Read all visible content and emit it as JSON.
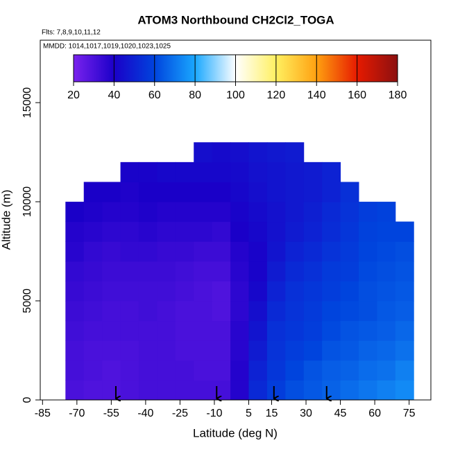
{
  "chart_data": {
    "type": "curtain",
    "title": "ATOM3 Northbound CH2Cl2_TOGA",
    "subtitle": "Flts: 7,8,9,10,11,12",
    "annotation": "MMDD: 1014,1017,1019,1020,1023,1025",
    "x_label": "Latitude (deg N)",
    "y_label": "Altitude (m)",
    "xlim": [
      -86,
      84.5
    ],
    "ylim": [
      0,
      18150
    ],
    "xticks": [
      -85,
      -70,
      -55,
      -40,
      -25,
      -10,
      5,
      15,
      30,
      45,
      60,
      75
    ],
    "yticks": [
      0,
      5000,
      10000,
      15000
    ],
    "colorbar_ticks": [
      20,
      40,
      60,
      80,
      100,
      120,
      140,
      160,
      180
    ],
    "colorscale": [
      "#7a22ee",
      "#1a00c8",
      "#0044dd",
      "#1aa8ff",
      "#ffffff",
      "#fff060",
      "#ffa010",
      "#e61a00",
      "#8b1010"
    ],
    "lat_bins": [
      -75,
      -67,
      -59,
      -51,
      -43,
      -35,
      -27,
      -19,
      -11,
      -3,
      5,
      13,
      21,
      29,
      37,
      45,
      53,
      61,
      69,
      77
    ],
    "alt_bins": [
      0,
      1000,
      2000,
      3000,
      4000,
      5000,
      6000,
      7000,
      8000,
      9000,
      10000,
      11000,
      12000,
      13000
    ],
    "grid": [
      [
        30,
        31,
        31,
        32,
        33,
        34,
        35,
        37,
        38,
        40,
        null,
        null,
        null
      ],
      [
        29,
        30,
        30,
        31,
        32,
        33,
        34,
        35,
        37,
        39,
        40,
        null,
        null
      ],
      [
        29,
        29,
        30,
        31,
        31,
        32,
        33,
        34,
        36,
        38,
        40,
        null,
        null
      ],
      [
        30,
        30,
        30,
        31,
        31,
        32,
        33,
        35,
        36,
        38,
        39,
        41,
        null
      ],
      [
        31,
        31,
        31,
        31,
        32,
        32,
        33,
        35,
        37,
        39,
        40,
        41,
        null
      ],
      [
        31,
        31,
        31,
        31,
        31,
        32,
        33,
        34,
        36,
        38,
        40,
        42,
        null
      ],
      [
        31,
        31,
        30,
        30,
        30,
        31,
        32,
        34,
        36,
        38,
        40,
        42,
        null
      ],
      [
        31,
        30,
        30,
        30,
        30,
        30,
        31,
        33,
        36,
        38,
        40,
        42,
        44
      ],
      [
        31,
        30,
        30,
        30,
        29,
        29,
        31,
        33,
        35,
        38,
        40,
        42,
        43
      ],
      [
        38,
        38,
        37,
        37,
        36,
        36,
        37,
        38,
        40,
        41,
        42,
        43,
        44
      ],
      [
        52,
        50,
        48,
        46,
        44,
        42,
        41,
        41,
        42,
        43,
        44,
        45,
        46
      ],
      [
        58,
        56,
        55,
        54,
        52,
        50,
        48,
        46,
        45,
        45,
        46,
        46,
        47
      ],
      [
        62,
        60,
        58,
        56,
        55,
        54,
        52,
        50,
        48,
        47,
        47,
        47,
        48
      ],
      [
        64,
        63,
        60,
        58,
        57,
        56,
        54,
        52,
        50,
        49,
        48,
        48,
        null
      ],
      [
        66,
        65,
        63,
        61,
        60,
        58,
        57,
        55,
        53,
        52,
        50,
        50,
        null
      ],
      [
        68,
        66,
        64,
        63,
        61,
        60,
        58,
        57,
        56,
        55,
        54,
        null,
        null
      ],
      [
        70,
        68,
        66,
        64,
        62,
        62,
        61,
        60,
        59,
        58,
        null,
        null,
        null
      ],
      [
        72,
        69,
        67,
        65,
        64,
        63,
        62,
        61,
        60,
        59,
        null,
        null,
        null
      ],
      [
        74,
        72,
        69,
        67,
        65,
        64,
        63,
        62,
        60,
        null,
        null,
        null,
        null
      ]
    ],
    "marker_lats": [
      -53,
      -9,
      16,
      39
    ]
  }
}
